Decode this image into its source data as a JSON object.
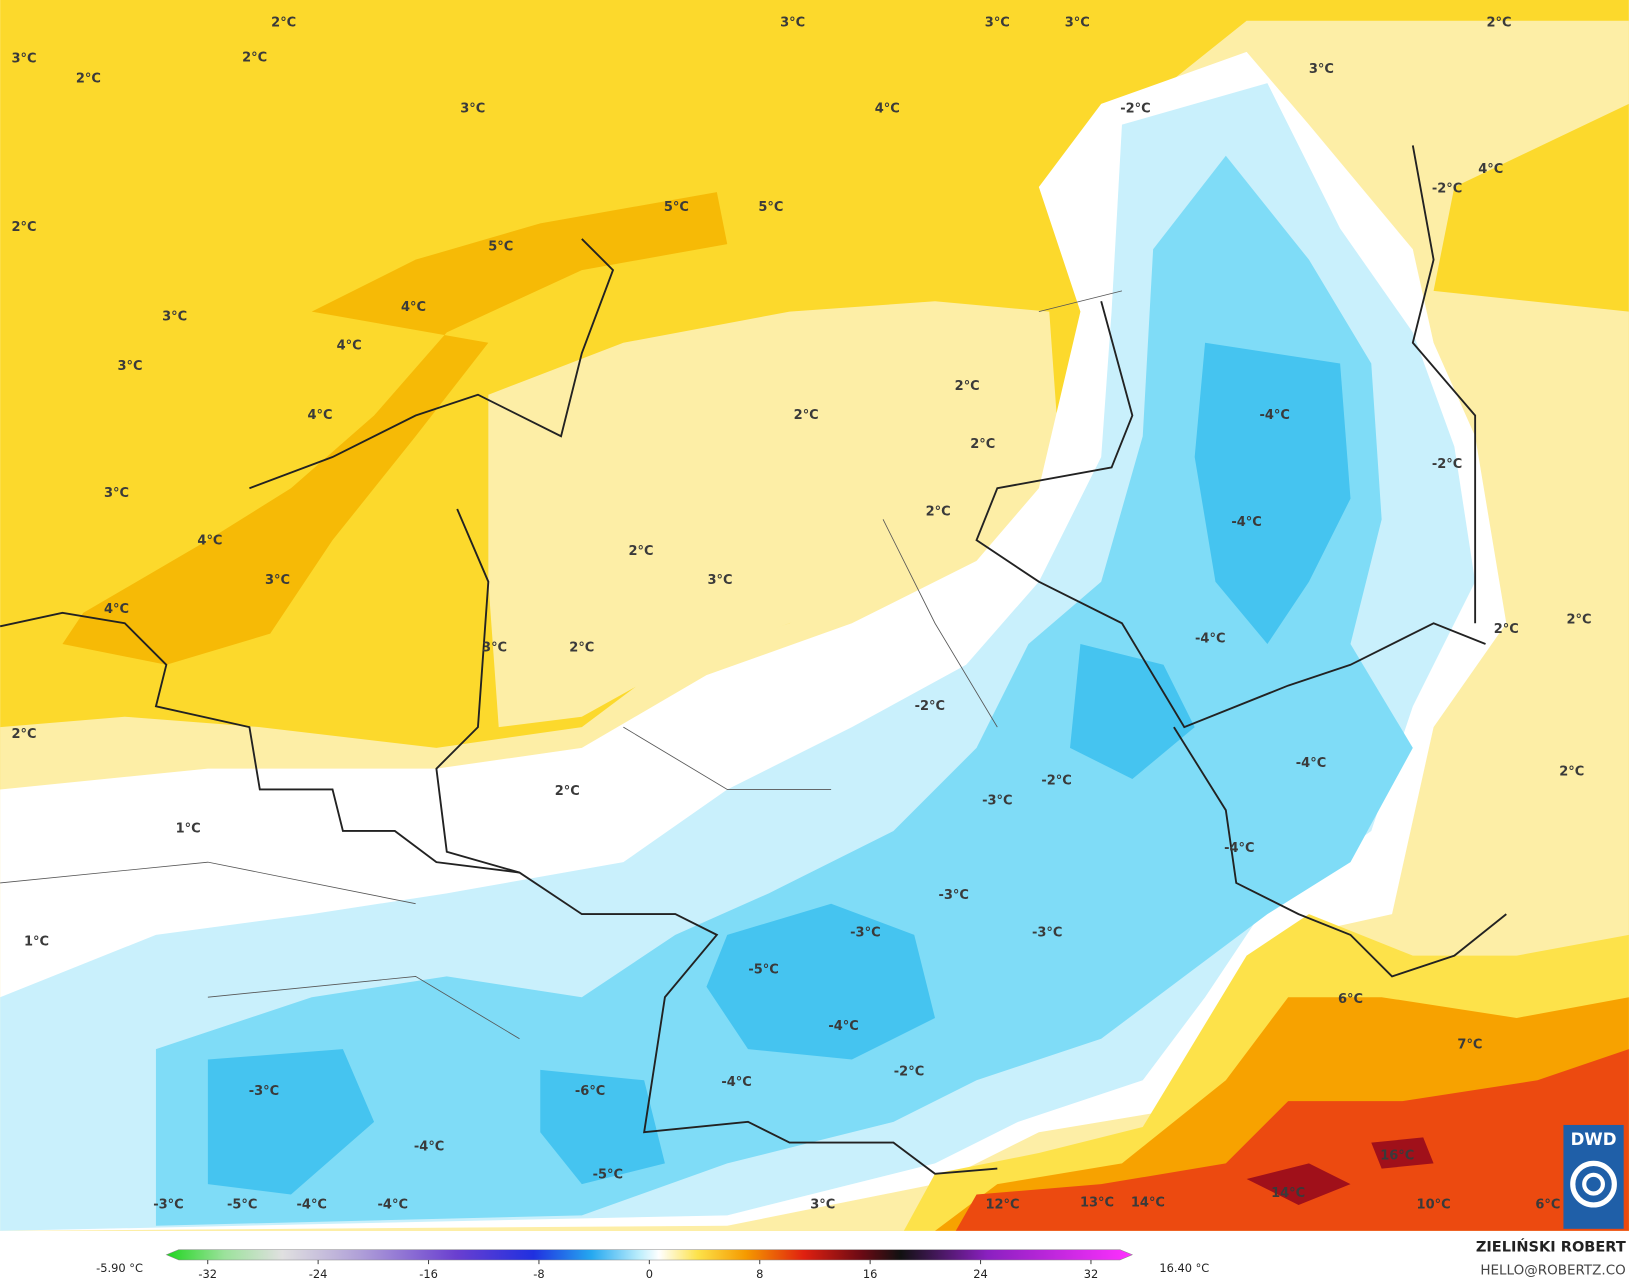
{
  "map": {
    "labels": [
      "3°C",
      "2°C",
      "2°C",
      "2°C",
      "3°C",
      "3°C",
      "3°C",
      "3°C",
      "2°C",
      "4°C",
      "-2°C",
      "3°C",
      "4°C",
      "-2°C",
      "2°C",
      "5°C",
      "5°C",
      "5°C",
      "3°C",
      "4°C",
      "4°C",
      "3°C",
      "2°C",
      "2°C",
      "4°C",
      "-4°C",
      "2°C",
      "-2°C",
      "3°C",
      "2°C",
      "-4°C",
      "4°C",
      "2°C",
      "3°C",
      "3°C",
      "4°C",
      "2°C",
      "2°C",
      "-4°C",
      "3°C",
      "2°C",
      "-2°C",
      "2°C",
      "-4°C",
      "2°C",
      "-2°C",
      "2°C",
      "-3°C",
      "1°C",
      "-4°C",
      "-3°C",
      "-3°C",
      "-3°C",
      "1°C",
      "-5°C",
      "6°C",
      "-4°C",
      "7°C",
      "-2°C",
      "-4°C",
      "-3°C",
      "-6°C",
      "-4°C",
      "16°C",
      "-5°C",
      "14°C",
      "12°C",
      "13°C",
      "14°C",
      "10°C",
      "6°C",
      "-3°C",
      "-5°C",
      "-4°C",
      "-4°C",
      "3°C"
    ]
  },
  "colorbar": {
    "min_label": "-5.90 °C",
    "max_label": "16.40 °C",
    "range": [
      -35,
      35
    ],
    "ticks": [
      -32,
      -24,
      -16,
      -8,
      0,
      8,
      16,
      24,
      32
    ]
  },
  "credit": {
    "author": "ZIELIŃSKI ROBERT",
    "contact": "HELLO@ROBERTZ.CO"
  },
  "logo": {
    "text": "DWD"
  }
}
